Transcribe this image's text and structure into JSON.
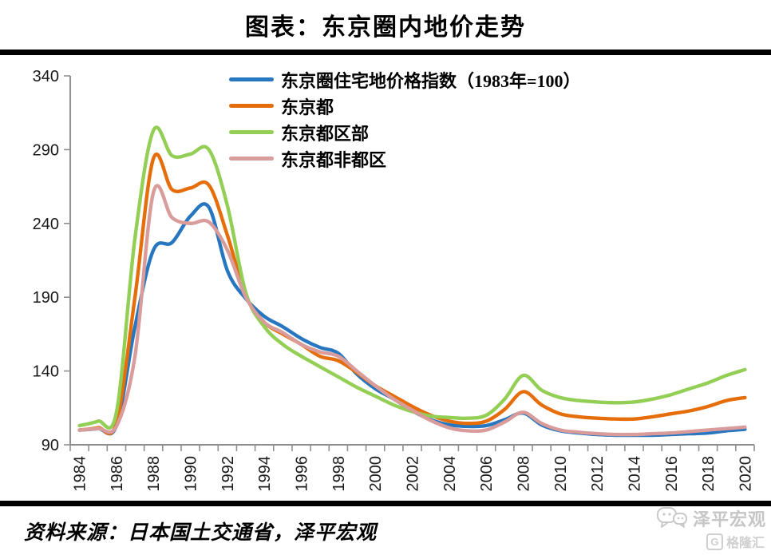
{
  "page": {
    "title": "图表：东京圈内地价走势",
    "source": "资料来源：日本国土交通省，泽平宏观",
    "watermark": {
      "brand": "泽平宏观",
      "badge_letter": "G",
      "badge_label": "格隆汇"
    }
  },
  "chart_data": {
    "type": "line",
    "title": "图表：东京圈内地价走势",
    "xlabel": "",
    "ylabel": "",
    "ylim": [
      90,
      340
    ],
    "yticks": [
      90,
      140,
      190,
      240,
      290,
      340
    ],
    "x": [
      1984,
      1985,
      1986,
      1987,
      1988,
      1989,
      1990,
      1991,
      1992,
      1993,
      1994,
      1995,
      1996,
      1997,
      1998,
      1999,
      2000,
      2001,
      2002,
      2003,
      2004,
      2005,
      2006,
      2007,
      2008,
      2009,
      2010,
      2011,
      2012,
      2013,
      2014,
      2015,
      2016,
      2017,
      2018,
      2019,
      2020
    ],
    "x_tick_labels": [
      "1984",
      "1986",
      "1988",
      "1990",
      "1992",
      "1994",
      "1996",
      "1998",
      "2000",
      "2002",
      "2004",
      "2006",
      "2008",
      "2010",
      "2012",
      "2014",
      "2016",
      "2018",
      "2020"
    ],
    "grid": false,
    "legend_position": "top",
    "axis_color": "#8f8f8f",
    "series": [
      {
        "name": "东京圈住宅地价格指数（1983年=100）",
        "color": "#2776C0",
        "values": [
          100,
          101,
          103,
          170,
          222,
          227,
          245,
          251,
          208,
          189,
          177,
          170,
          162,
          156,
          152,
          138,
          128,
          121,
          113,
          107,
          103.5,
          102.5,
          103,
          107,
          111.5,
          103.5,
          99.5,
          98,
          97,
          96.5,
          96.5,
          96.5,
          97,
          97.5,
          98,
          99.5,
          100.5
        ]
      },
      {
        "name": "东京都",
        "color": "#E56D0A",
        "values": [
          100,
          101.5,
          105,
          190,
          284,
          263,
          264,
          266,
          232,
          191,
          173,
          165,
          158,
          150,
          147,
          139,
          130,
          123,
          116,
          110,
          106,
          104.5,
          106,
          114,
          126,
          117,
          111,
          109,
          108,
          107.5,
          107.5,
          109,
          111,
          113,
          116,
          120,
          122
        ]
      },
      {
        "name": "东京都区部",
        "color": "#93CE55",
        "values": [
          103,
          106,
          112,
          230,
          303,
          286,
          287,
          290,
          252,
          193,
          170,
          158,
          150,
          143,
          136,
          129,
          123,
          117,
          112.5,
          109.5,
          108.5,
          108,
          110,
          121,
          137,
          127,
          122,
          120,
          119,
          118.5,
          119,
          121,
          124,
          128,
          132,
          137,
          141
        ]
      },
      {
        "name": "东京都非都区",
        "color": "#DA9B9B",
        "values": [
          100,
          101,
          102.5,
          150,
          261,
          244,
          240,
          241,
          222,
          190,
          173,
          166,
          158,
          153,
          150,
          140,
          130,
          121,
          113.5,
          106.5,
          101.5,
          99.5,
          100,
          105.5,
          112,
          104.5,
          100,
          98.5,
          97.5,
          97,
          97,
          97.5,
          98,
          99,
          100,
          101,
          102
        ]
      }
    ]
  }
}
